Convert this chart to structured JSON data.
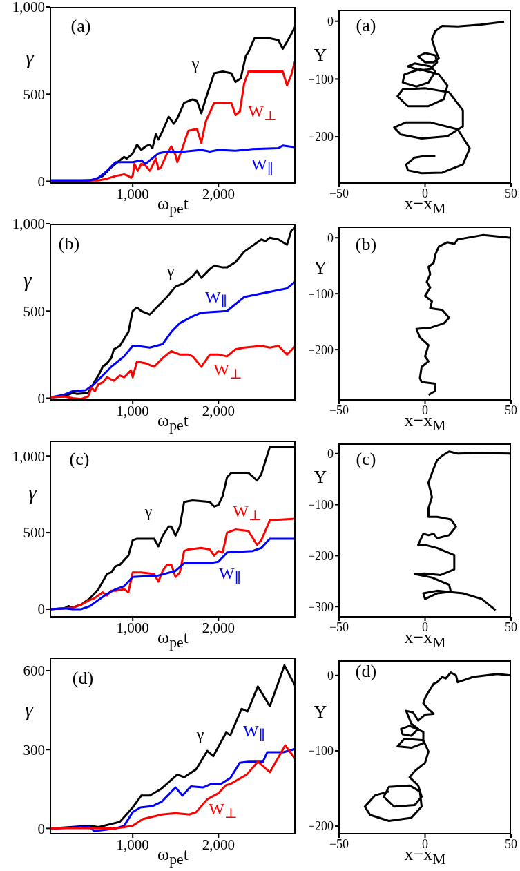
{
  "chart_data": [
    {
      "type": "line",
      "xlabel": "ω$_{pe}$t",
      "ylabel": "γ",
      "annotations": [
        "(a)"
      ],
      "xlim": [
        40,
        2900
      ],
      "xticks": [
        {
          "value": 1000,
          "label": "1,000"
        },
        {
          "value": 2000,
          "label": "2,000"
        }
      ],
      "ylim": [
        -10,
        1000
      ],
      "yticks": [
        0,
        500,
        {
          "value": 1000,
          "label": "1,000"
        }
      ],
      "series": [
        {
          "name": "γ",
          "color": "#000000",
          "x": [
            40,
            400,
            550,
            650,
            750,
            850,
            900,
            930,
            980,
            1000,
            1050,
            1100,
            1150,
            1200,
            1230,
            1270,
            1300,
            1350,
            1420,
            1480,
            1520,
            1600,
            1700,
            1750,
            1800,
            1850,
            1950,
            2050,
            2150,
            2200,
            2260,
            2320,
            2350,
            2420,
            2600,
            2700,
            2750,
            2800,
            2900
          ],
          "values": [
            5,
            5,
            8,
            30,
            80,
            120,
            140,
            130,
            150,
            160,
            210,
            180,
            200,
            210,
            190,
            270,
            240,
            290,
            370,
            330,
            360,
            450,
            470,
            460,
            390,
            470,
            620,
            630,
            620,
            570,
            590,
            720,
            740,
            820,
            820,
            810,
            760,
            800,
            890
          ]
        },
        {
          "name": "W$_{⊥}$",
          "color": "#ff0000",
          "x": [
            40,
            600,
            700,
            800,
            900,
            950,
            980,
            1000,
            1020,
            1060,
            1100,
            1150,
            1200,
            1270,
            1300,
            1330,
            1400,
            1450,
            1500,
            1520,
            1580,
            1620,
            1650,
            1750,
            1800,
            1850,
            1950,
            2150,
            2200,
            2250,
            2300,
            2350,
            2750,
            2800,
            2850,
            2900
          ],
          "values": [
            5,
            5,
            15,
            30,
            40,
            30,
            20,
            30,
            100,
            60,
            100,
            90,
            60,
            130,
            70,
            80,
            160,
            200,
            150,
            110,
            190,
            250,
            290,
            300,
            220,
            340,
            450,
            450,
            380,
            400,
            560,
            630,
            630,
            550,
            610,
            700
          ]
        },
        {
          "name": "W$_{∥}$",
          "color": "#0000ff",
          "x": [
            40,
            500,
            600,
            700,
            800,
            900,
            1000,
            1100,
            1150,
            1200,
            1300,
            1400,
            1600,
            1800,
            1900,
            2000,
            2200,
            2400,
            2700,
            2750,
            2900
          ],
          "values": [
            5,
            5,
            20,
            60,
            110,
            110,
            110,
            120,
            100,
            120,
            160,
            170,
            170,
            180,
            170,
            180,
            175,
            185,
            190,
            205,
            195
          ]
        }
      ]
    },
    {
      "type": "line",
      "xlabel": "x−x$_{M}$",
      "ylabel": "Y",
      "annotations": [
        "(a)"
      ],
      "xlim": [
        -50,
        50
      ],
      "xticks": [
        {
          "value": -50,
          "label": "−50"
        },
        {
          "value": 0,
          "label": "0"
        },
        {
          "value": 50,
          "label": "50"
        }
      ],
      "ylim": [
        -280,
        20
      ],
      "yticks": [
        {
          "value": 0,
          "label": "0"
        },
        {
          "value": -100,
          "label": "−100"
        },
        {
          "value": -200,
          "label": "−200"
        }
      ],
      "series": [
        {
          "color": "#000000",
          "x": [
            46,
            32,
            19,
            10,
            6,
            4,
            6,
            8,
            5,
            0,
            -4,
            0,
            6,
            7,
            3,
            -3,
            -10,
            -6,
            3,
            6,
            2,
            -5,
            -13,
            -12,
            -3,
            8,
            13,
            11,
            2,
            -10,
            -16,
            -13,
            0,
            14,
            22,
            22,
            13,
            -2,
            -14,
            -18,
            -11,
            3,
            19,
            26,
            22,
            10,
            -2,
            -10,
            -11,
            -6,
            0,
            6
          ],
          "values": [
            -1,
            -6,
            -9,
            -8,
            -17,
            -31,
            -50,
            -64,
            -71,
            -71,
            -61,
            -55,
            -59,
            -71,
            -83,
            -85,
            -78,
            -73,
            -78,
            -87,
            -106,
            -113,
            -106,
            -92,
            -83,
            -92,
            -111,
            -135,
            -147,
            -147,
            -130,
            -118,
            -116,
            -123,
            -154,
            -182,
            -199,
            -203,
            -196,
            -184,
            -175,
            -175,
            -187,
            -220,
            -248,
            -262,
            -263,
            -258,
            -248,
            -236,
            -233,
            -233
          ]
        }
      ]
    },
    {
      "type": "line",
      "xlabel": "ω$_{pe}$t",
      "ylabel": "γ",
      "annotations": [
        "(b)"
      ],
      "xlim": [
        40,
        2900
      ],
      "xticks": [
        {
          "value": 1000,
          "label": "1,000"
        },
        {
          "value": 2000,
          "label": "2,000"
        }
      ],
      "ylim": [
        -10,
        1000
      ],
      "yticks": [
        0,
        500,
        {
          "value": 1000,
          "label": "1,000"
        }
      ],
      "series": [
        {
          "name": "γ",
          "color": "#000000",
          "x": [
            40,
            200,
            300,
            350,
            480,
            520,
            560,
            600,
            650,
            700,
            750,
            780,
            850,
            900,
            950,
            1000,
            1050,
            1100,
            1200,
            1300,
            1400,
            1500,
            1600,
            1700,
            1750,
            1800,
            1900,
            1950,
            2050,
            2100,
            2200,
            2300,
            2500,
            2550,
            2600,
            2700,
            2800,
            2850,
            2900
          ],
          "values": [
            5,
            10,
            30,
            25,
            30,
            60,
            100,
            130,
            180,
            200,
            230,
            280,
            300,
            340,
            380,
            500,
            520,
            500,
            480,
            530,
            580,
            640,
            660,
            700,
            730,
            690,
            740,
            760,
            750,
            750,
            780,
            840,
            910,
            900,
            920,
            910,
            880,
            960,
            980
          ]
        },
        {
          "name": "W$_{∥}$",
          "color": "#0000ff",
          "x": [
            40,
            200,
            300,
            450,
            550,
            650,
            750,
            900,
            1000,
            1050,
            1200,
            1350,
            1450,
            1550,
            1700,
            1800,
            2100,
            2300,
            2500,
            2800,
            2900
          ],
          "values": [
            5,
            20,
            40,
            45,
            80,
            130,
            180,
            240,
            300,
            300,
            290,
            310,
            380,
            430,
            470,
            490,
            500,
            580,
            600,
            630,
            670
          ]
        },
        {
          "name": "W$_{⊥}$",
          "color": "#ff0000",
          "x": [
            40,
            200,
            300,
            400,
            480,
            520,
            560,
            600,
            650,
            700,
            780,
            850,
            900,
            980,
            1000,
            1050,
            1150,
            1250,
            1350,
            1450,
            1550,
            1650,
            1700,
            1800,
            1900,
            2000,
            2100,
            2200,
            2300,
            2500,
            2600,
            2700,
            2800,
            2900
          ],
          "values": [
            5,
            10,
            0,
            -5,
            10,
            60,
            40,
            80,
            90,
            120,
            100,
            130,
            120,
            160,
            120,
            210,
            200,
            180,
            230,
            270,
            250,
            250,
            240,
            180,
            250,
            250,
            240,
            280,
            290,
            300,
            290,
            300,
            250,
            300
          ]
        }
      ]
    },
    {
      "type": "line",
      "xlabel": "x−x$_{M}$",
      "ylabel": "Y",
      "annotations": [
        "(b)"
      ],
      "xlim": [
        -50,
        50
      ],
      "xticks": [
        {
          "value": -50,
          "label": "−50"
        },
        {
          "value": 0,
          "label": "0"
        },
        {
          "value": 50,
          "label": "50"
        }
      ],
      "ylim": [
        -290,
        20
      ],
      "yticks": [
        {
          "value": 0,
          "label": "0"
        },
        {
          "value": -100,
          "label": "−100"
        },
        {
          "value": -200,
          "label": "−200"
        }
      ],
      "series": [
        {
          "color": "#000000",
          "x": [
            50,
            34,
            19,
            17,
            13,
            8,
            6,
            5,
            2,
            3,
            1,
            3,
            0,
            4,
            3,
            10,
            14,
            11,
            3,
            -5,
            -3,
            2,
            0,
            2,
            -2,
            -3,
            -2,
            6,
            6,
            2
          ],
          "values": [
            0,
            5,
            -3,
            -11,
            -8,
            -16,
            -30,
            -45,
            -52,
            -65,
            -79,
            -89,
            -104,
            -114,
            -126,
            -129,
            -143,
            -153,
            -161,
            -163,
            -178,
            -192,
            -212,
            -221,
            -231,
            -251,
            -258,
            -261,
            -274,
            -281
          ]
        }
      ]
    },
    {
      "type": "line",
      "xlabel": "ω$_{pe}$t",
      "ylabel": "γ",
      "annotations": [
        "(c)"
      ],
      "xlim": [
        40,
        2900
      ],
      "xticks": [
        {
          "value": 1000,
          "label": "1,000"
        },
        {
          "value": 2000,
          "label": "2,000"
        }
      ],
      "ylim": [
        -50,
        1100
      ],
      "yticks": [
        0,
        500,
        {
          "value": 1000,
          "label": "1,000"
        }
      ],
      "series": [
        {
          "name": "γ",
          "color": "#000000",
          "x": [
            40,
            200,
            250,
            300,
            400,
            500,
            550,
            600,
            650,
            700,
            750,
            800,
            850,
            900,
            950,
            1000,
            1050,
            1250,
            1300,
            1350,
            1420,
            1450,
            1500,
            1550,
            1600,
            1700,
            1900,
            1950,
            2000,
            2050,
            2100,
            2150,
            2350,
            2450,
            2500,
            2600,
            2900
          ],
          "values": [
            0,
            5,
            20,
            10,
            30,
            70,
            100,
            130,
            180,
            230,
            240,
            280,
            290,
            320,
            350,
            450,
            460,
            460,
            410,
            480,
            540,
            540,
            480,
            540,
            700,
            710,
            700,
            670,
            680,
            740,
            860,
            890,
            890,
            840,
            880,
            1060,
            1060
          ]
        },
        {
          "name": "W$_{⊥}$",
          "color": "#ff0000",
          "x": [
            40,
            200,
            300,
            400,
            500,
            550,
            600,
            650,
            700,
            750,
            800,
            900,
            950,
            1000,
            1100,
            1250,
            1300,
            1350,
            1400,
            1450,
            1500,
            1550,
            1600,
            1650,
            1800,
            1900,
            1950,
            2000,
            2050,
            2100,
            2200,
            2350,
            2450,
            2500,
            2600,
            2900
          ],
          "values": [
            0,
            5,
            10,
            30,
            60,
            70,
            90,
            110,
            90,
            120,
            120,
            130,
            110,
            240,
            240,
            230,
            180,
            250,
            290,
            290,
            210,
            240,
            380,
            390,
            400,
            390,
            350,
            380,
            370,
            500,
            520,
            510,
            420,
            450,
            580,
            590
          ]
        },
        {
          "name": "W$_{∥}$",
          "color": "#0000ff",
          "x": [
            40,
            200,
            300,
            400,
            500,
            600,
            700,
            800,
            900,
            1000,
            1300,
            1500,
            1600,
            1900,
            2000,
            2100,
            2400,
            2500,
            2600,
            2900
          ],
          "values": [
            0,
            5,
            0,
            0,
            20,
            60,
            100,
            130,
            150,
            210,
            220,
            250,
            300,
            300,
            310,
            370,
            380,
            400,
            460,
            460
          ]
        }
      ]
    },
    {
      "type": "line",
      "xlabel": "x−x$_{M}$",
      "ylabel": "Y",
      "annotations": [
        "(c)"
      ],
      "xlim": [
        -50,
        50
      ],
      "xticks": [
        {
          "value": -50,
          "label": "−50"
        },
        {
          "value": 0,
          "label": "0"
        },
        {
          "value": 50,
          "label": "50"
        }
      ],
      "ylim": [
        -320,
        20
      ],
      "yticks": [
        {
          "value": 0,
          "label": "0"
        },
        {
          "value": -100,
          "label": "−100"
        },
        {
          "value": -200,
          "label": "−200"
        },
        {
          "value": -300,
          "label": "−300"
        }
      ],
      "series": [
        {
          "color": "#000000",
          "x": [
            50,
            32,
            19,
            14,
            10,
            7,
            5,
            2,
            4,
            2,
            2,
            7,
            15,
            18,
            14,
            7,
            5,
            2,
            -1,
            -4,
            0,
            7,
            17,
            17,
            9,
            0,
            -6,
            4,
            14,
            15,
            7,
            0,
            -1,
            7,
            22,
            33,
            41
          ],
          "values": [
            0,
            1,
            0,
            4,
            -4,
            -13,
            -29,
            -57,
            -85,
            -107,
            -124,
            -124,
            -129,
            -143,
            -160,
            -166,
            -157,
            -160,
            -157,
            -179,
            -179,
            -185,
            -199,
            -227,
            -238,
            -235,
            -236,
            -243,
            -257,
            -271,
            -274,
            -285,
            -274,
            -269,
            -274,
            -285,
            -307
          ]
        }
      ]
    },
    {
      "type": "line",
      "xlabel": "ω$_{pe}$t",
      "ylabel": "γ",
      "annotations": [
        "(d)"
      ],
      "xlim": [
        40,
        2900
      ],
      "xticks": [
        {
          "value": 1000,
          "label": "1,000"
        },
        {
          "value": 2000,
          "label": "2,000"
        }
      ],
      "ylim": [
        -20,
        650
      ],
      "yticks": [
        0,
        300,
        600
      ],
      "series": [
        {
          "name": "γ",
          "color": "#000000",
          "x": [
            40,
            500,
            600,
            850,
            1000,
            1100,
            1200,
            1330,
            1520,
            1600,
            1740,
            1870,
            1940,
            2090,
            2140,
            2270,
            2340,
            2460,
            2600,
            2770,
            2900
          ],
          "values": [
            0,
            10,
            5,
            25,
            80,
            125,
            125,
            150,
            205,
            195,
            225,
            295,
            275,
            365,
            355,
            455,
            445,
            540,
            465,
            620,
            540
          ]
        },
        {
          "name": "W$_{∥}$",
          "color": "#0000ff",
          "x": [
            40,
            400,
            500,
            550,
            800,
            900,
            1000,
            1090,
            1230,
            1340,
            1500,
            1580,
            1680,
            1820,
            1920,
            2030,
            2140,
            2250,
            2350,
            2520,
            2570,
            2760,
            2900
          ],
          "values": [
            0,
            5,
            5,
            -10,
            0,
            10,
            62,
            80,
            85,
            102,
            156,
            125,
            160,
            156,
            170,
            170,
            192,
            250,
            254,
            254,
            290,
            290,
            303
          ]
        },
        {
          "name": "W$_{⊥}$",
          "color": "#ff0000",
          "x": [
            40,
            300,
            800,
            900,
            1000,
            1120,
            1340,
            1500,
            1660,
            1740,
            1870,
            2000,
            2090,
            2140,
            2330,
            2460,
            2600,
            2780,
            2900
          ],
          "values": [
            0,
            2,
            0,
            5,
            10,
            36,
            53,
            58,
            53,
            62,
            111,
            134,
            165,
            169,
            205,
            254,
            214,
            316,
            263
          ]
        }
      ]
    },
    {
      "type": "line",
      "xlabel": "x−x$_{M}$",
      "ylabel": "Y",
      "annotations": [
        "(d)"
      ],
      "xlim": [
        -50,
        50
      ],
      "xticks": [
        {
          "value": -50,
          "label": "−50"
        },
        {
          "value": 0,
          "label": "0"
        },
        {
          "value": 50,
          "label": "50"
        }
      ],
      "ylim": [
        -210,
        20
      ],
      "yticks": [
        {
          "value": 0,
          "label": "0"
        },
        {
          "value": -100,
          "label": "−100"
        },
        {
          "value": -200,
          "label": "−200"
        }
      ],
      "series": [
        {
          "color": "#000000",
          "x": [
            50,
            42,
            28,
            19,
            18,
            15,
            12,
            10,
            7,
            5,
            2,
            0,
            -1,
            2,
            5,
            0,
            -4,
            -7,
            -11,
            -8,
            -4,
            -8,
            -13,
            -14,
            -9,
            -1,
            -1,
            -8,
            -16,
            -12,
            -1,
            2,
            0,
            -6,
            -9,
            -4,
            -2,
            -6,
            -18,
            -24,
            -21,
            -9,
            -3,
            -2,
            -8,
            -21,
            -32,
            -35,
            -29,
            -21
          ],
          "values": [
            0,
            2,
            -2,
            -9,
            0,
            4,
            -4,
            -2,
            -9,
            -11,
            -22,
            -30,
            -37,
            -45,
            -51,
            -52,
            -60,
            -49,
            -47,
            -64,
            -71,
            -80,
            -78,
            -71,
            -67,
            -75,
            -90,
            -96,
            -94,
            -84,
            -86,
            -101,
            -116,
            -127,
            -135,
            -146,
            -161,
            -172,
            -174,
            -161,
            -148,
            -146,
            -154,
            -174,
            -189,
            -193,
            -185,
            -174,
            -159,
            -154
          ]
        }
      ]
    }
  ]
}
